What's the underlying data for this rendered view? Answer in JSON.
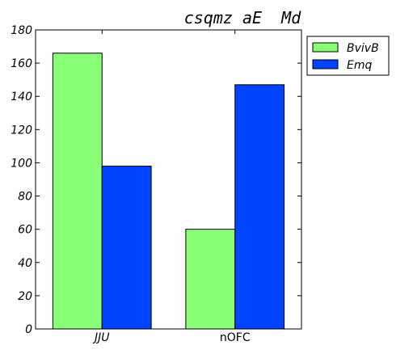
{
  "chart_data": {
    "type": "bar",
    "title": "csqmz aE  Md",
    "xlabel": "",
    "ylabel": "",
    "categories": [
      "JJU",
      "nOFC"
    ],
    "category_styles": [
      "italic",
      "normal"
    ],
    "series": [
      {
        "name": "BvivB",
        "color": "#88ff77",
        "values": [
          166,
          60
        ]
      },
      {
        "name": "Emq",
        "color": "#0044ff",
        "values": [
          98,
          147
        ]
      }
    ],
    "ylim": [
      0,
      180
    ],
    "yticks": [
      0,
      20,
      40,
      60,
      80,
      100,
      120,
      140,
      160,
      180
    ],
    "grid": false,
    "legend_position": "outside-top-right"
  }
}
